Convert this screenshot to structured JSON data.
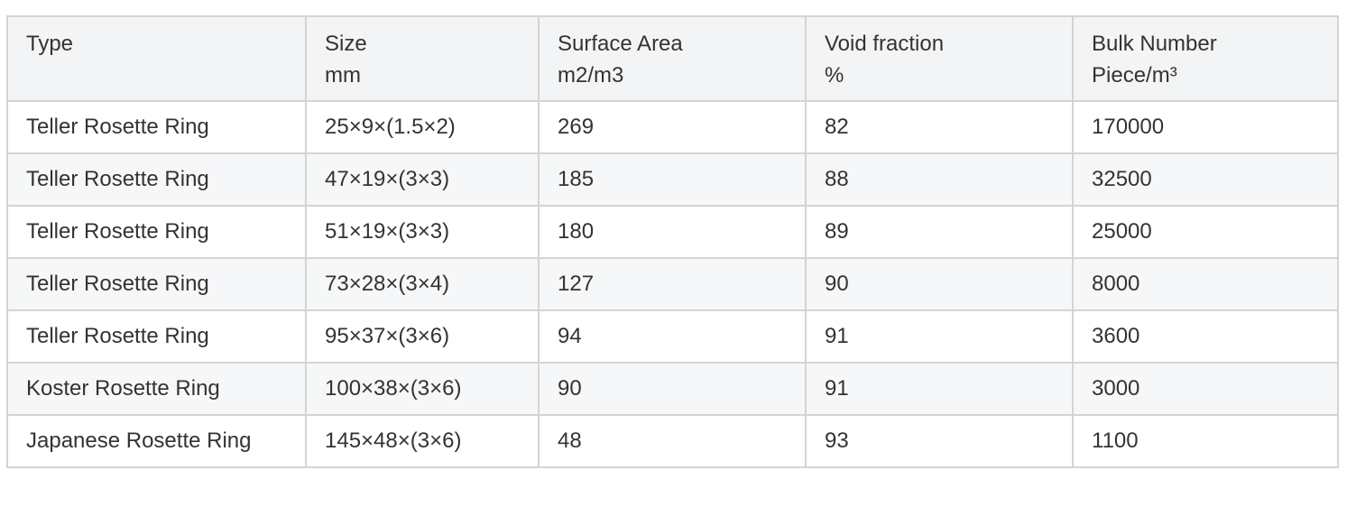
{
  "table": {
    "headers": [
      {
        "line1": "Type",
        "line2": ""
      },
      {
        "line1": "Size",
        "line2": "mm"
      },
      {
        "line1": "Surface Area",
        "line2": "m2/m3"
      },
      {
        "line1": "Void fraction",
        "line2": "%"
      },
      {
        "line1": "Bulk Number",
        "line2": "Piece/m³"
      }
    ],
    "rows": [
      [
        "Teller Rosette Ring",
        "25×9×(1.5×2)",
        "269",
        "82",
        "170000"
      ],
      [
        "Teller Rosette Ring",
        "47×19×(3×3)",
        "185",
        "88",
        "32500"
      ],
      [
        "Teller Rosette Ring",
        "51×19×(3×3)",
        "180",
        "89",
        "25000"
      ],
      [
        "Teller Rosette Ring",
        "73×28×(3×4)",
        "127",
        "90",
        "8000"
      ],
      [
        "Teller Rosette Ring",
        "95×37×(3×6)",
        "94",
        "91",
        "3600"
      ],
      [
        "Koster Rosette Ring",
        "100×38×(3×6)",
        "90",
        "91",
        "3000"
      ],
      [
        "Japanese Rosette Ring",
        "145×48×(3×6)",
        "48",
        "93",
        "1100"
      ]
    ]
  }
}
